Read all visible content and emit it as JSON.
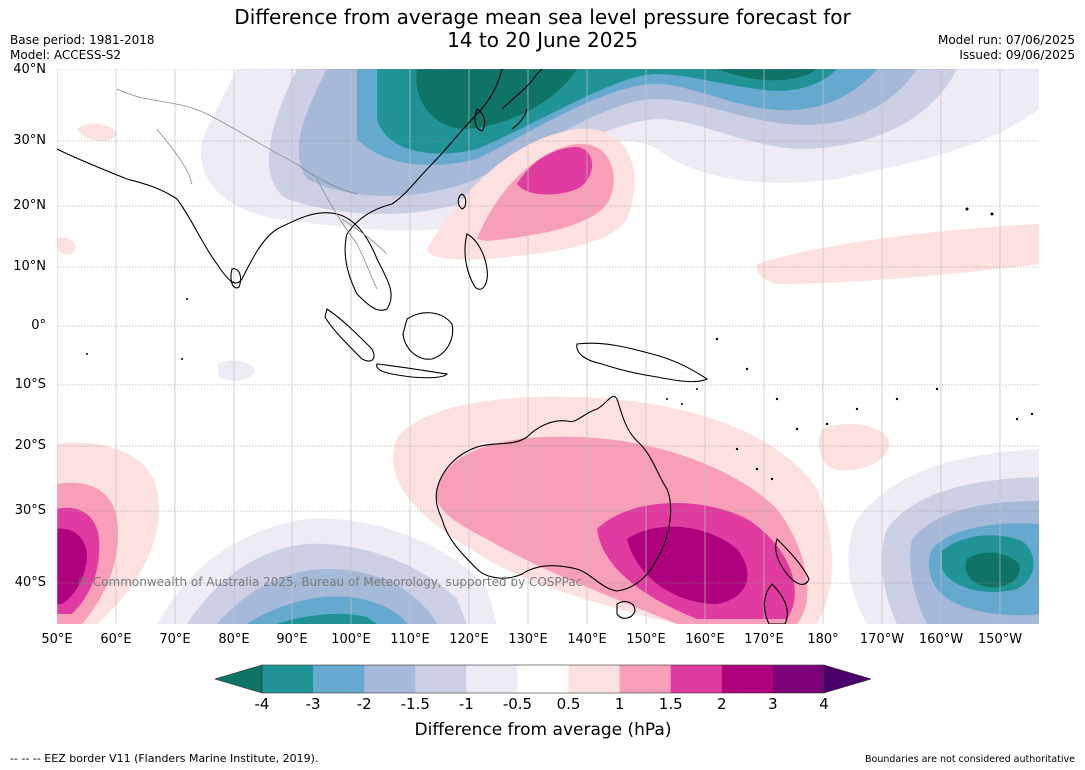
{
  "header": {
    "title_line1": "Difference from average mean sea level pressure forecast for",
    "title_line2": "14 to 20 June 2025",
    "base_period": "Base period: 1981-2018",
    "model": "Model: ACCESS-S2",
    "model_run": "Model run: 07/06/2025",
    "issued": "Issued: 09/06/2025"
  },
  "map": {
    "lat_labels": [
      "40°N",
      "30°N",
      "20°N",
      "10°N",
      "0°",
      "10°S",
      "20°S",
      "30°S",
      "40°S"
    ],
    "lon_labels": [
      "50°E",
      "60°E",
      "70°E",
      "80°E",
      "90°E",
      "100°E",
      "110°E",
      "120°E",
      "130°E",
      "140°E",
      "150°E",
      "160°E",
      "170°E",
      "180°",
      "170°W",
      "160°W",
      "150°W"
    ],
    "copyright": "© Commonwealth of Australia 2025, Bureau of Meteorology, supported by COSPPac"
  },
  "colorbar": {
    "title": "Difference from average (hPa)",
    "ticks": [
      "-4",
      "-3",
      "-2",
      "-1.5",
      "-1",
      "-0.5",
      "0.5",
      "1",
      "1.5",
      "2",
      "3",
      "4"
    ],
    "colors": [
      "#0f7466",
      "#1f9396",
      "#65a9cf",
      "#a7b9d8",
      "#cdcfe4",
      "#efebf4",
      "#ffffff",
      "#fde0e0",
      "#f79eb8",
      "#e03ba1",
      "#ae017e",
      "#7a0177",
      "#49006a"
    ]
  },
  "footer": {
    "eez": "--  --  -- EEZ border V11 (Flanders Marine Institute, 2019).",
    "disclaimer": "Boundaries are not considered authoritative"
  }
}
